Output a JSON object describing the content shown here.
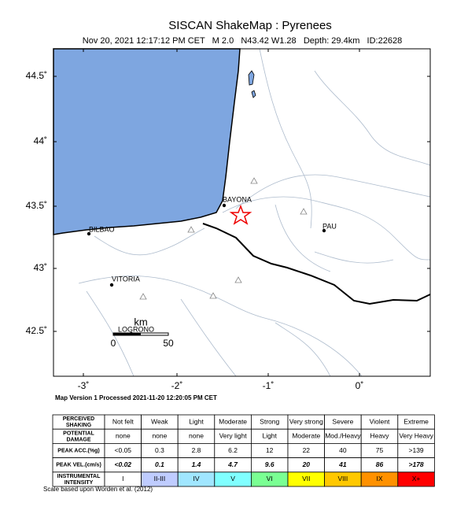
{
  "header": {
    "title": "SISCAN ShakeMap : Pyrenees",
    "subtitle": "Nov 20, 2021 12:17:12 PM CET   M 2.0   N43.42 W1.28   Depth: 29.4km   ID:22628"
  },
  "map": {
    "lat_ticks": [
      "44.5˚",
      "44˚",
      "43.5˚",
      "43˚",
      "42.5˚"
    ],
    "lon_ticks": [
      "-3˚",
      "-2˚",
      "-1˚",
      "0˚"
    ],
    "cities": [
      "BAYONA",
      "BILBAO",
      "VITORIA",
      "LOGRONO",
      "PAU"
    ],
    "scale": {
      "unit": "km",
      "start": "0",
      "end": "50"
    },
    "processed": "Map Version 1 Processed 2021-11-20 12:20:05 PM CET"
  },
  "table": {
    "rows": [
      [
        "PERCEIVED SHAKING",
        "Not felt",
        "Weak",
        "Light",
        "Moderate",
        "Strong",
        "Very strong",
        "Severe",
        "Violent",
        "Extreme"
      ],
      [
        "POTENTIAL DAMAGE",
        "none",
        "none",
        "none",
        "Very light",
        "Light",
        "Moderate",
        "Mod./Heavy",
        "Heavy",
        "Very Heavy"
      ],
      [
        "PEAK ACC.(%g)",
        "<0.05",
        "0.3",
        "2.8",
        "6.2",
        "12",
        "22",
        "40",
        "75",
        ">139"
      ],
      [
        "PEAK VEL.(cm/s)",
        "<0.02",
        "0.1",
        "1.4",
        "4.7",
        "9.6",
        "20",
        "41",
        "86",
        ">178"
      ],
      [
        "INSTRUMENTAL INTENSITY",
        "I",
        "II-III",
        "IV",
        "V",
        "VI",
        "VII",
        "VIII",
        "IX",
        "X+"
      ]
    ],
    "intensity_colors": [
      "#ffffff",
      "#bfccff",
      "#a0e6ff",
      "#80ffff",
      "#7aff93",
      "#ffff00",
      "#ffc800",
      "#ff9100",
      "#ff0000"
    ],
    "footnote": "Scale based upon Worden et al. (2012)"
  }
}
